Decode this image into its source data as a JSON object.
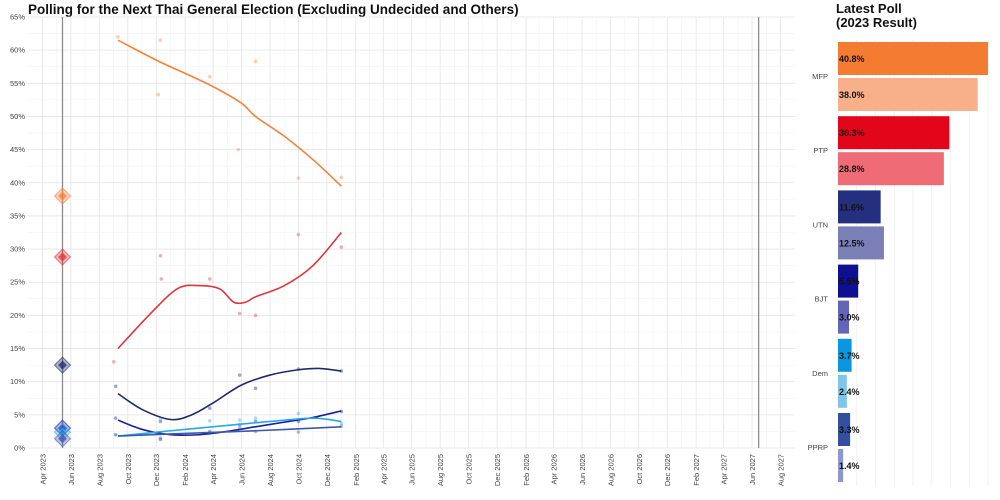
{
  "title": "Polling for the Next Thai General Election (Excluding Undecided and Others)",
  "side_title_line1": "Latest Poll",
  "side_title_line2": "(2023 Result)",
  "chart_data": [
    {
      "type": "line",
      "title": "Polling for the Next Thai General Election (Excluding Undecided and Others)",
      "xlabel": "",
      "ylabel": "",
      "ylim": [
        0,
        65
      ],
      "xlim": [
        "2023-03-01",
        "2027-09-01"
      ],
      "y_ticks": [
        "0%",
        "5%",
        "10%",
        "15%",
        "20%",
        "25%",
        "30%",
        "35%",
        "40%",
        "45%",
        "50%",
        "55%",
        "60%",
        "65%"
      ],
      "x_ticks": [
        {
          "date": "2023-04-01",
          "label": "Apr 2023"
        },
        {
          "date": "2023-06-01",
          "label": "Jun 2023"
        },
        {
          "date": "2023-08-01",
          "label": "Aug 2023"
        },
        {
          "date": "2023-10-01",
          "label": "Oct 2023"
        },
        {
          "date": "2023-12-01",
          "label": "Dec 2023"
        },
        {
          "date": "2024-02-01",
          "label": "Feb 2024"
        },
        {
          "date": "2024-04-01",
          "label": "Apr 2024"
        },
        {
          "date": "2024-06-01",
          "label": "Jun 2024"
        },
        {
          "date": "2024-08-01",
          "label": "Aug 2024"
        },
        {
          "date": "2024-10-01",
          "label": "Oct 2024"
        },
        {
          "date": "2024-12-01",
          "label": "Dec 2024"
        },
        {
          "date": "2025-02-01",
          "label": "Feb 2025"
        },
        {
          "date": "2025-04-01",
          "label": "Apr 2025"
        },
        {
          "date": "2025-06-01",
          "label": "Jun 2025"
        },
        {
          "date": "2025-08-01",
          "label": "Aug 2025"
        },
        {
          "date": "2025-10-01",
          "label": "Oct 2025"
        },
        {
          "date": "2025-12-01",
          "label": "Dec 2025"
        },
        {
          "date": "2026-02-01",
          "label": "Feb 2026"
        },
        {
          "date": "2026-04-01",
          "label": "Apr 2026"
        },
        {
          "date": "2026-06-01",
          "label": "Jun 2026"
        },
        {
          "date": "2026-08-01",
          "label": "Aug 2026"
        },
        {
          "date": "2026-10-01",
          "label": "Oct 2026"
        },
        {
          "date": "2026-12-01",
          "label": "Dec 2026"
        },
        {
          "date": "2027-02-01",
          "label": "Feb 2027"
        },
        {
          "date": "2027-04-01",
          "label": "Apr 2027"
        },
        {
          "date": "2027-06-01",
          "label": "Jun 2027"
        },
        {
          "date": "2027-08-01",
          "label": "Aug 2027"
        }
      ],
      "vertical_lines": [
        "2023-05-14",
        "2027-06-15"
      ],
      "grid": true,
      "series": [
        {
          "name": "MFP",
          "color": "#f5813b",
          "points": [
            [
              "2023-09-10",
              62
            ],
            [
              "2023-12-05",
              53.3
            ],
            [
              "2023-12-10",
              61.5
            ],
            [
              "2024-03-25",
              56
            ],
            [
              "2024-05-25",
              45
            ],
            [
              "2024-07-01",
              58.3
            ],
            [
              "2024-10-01",
              40.7
            ],
            [
              "2025-01-01",
              40.8
            ]
          ],
          "trend": [
            [
              "2023-09-10",
              61.5
            ],
            [
              "2023-12-01",
              58.5
            ],
            [
              "2024-02-01",
              56.5
            ],
            [
              "2024-04-01",
              54.5
            ],
            [
              "2024-06-01",
              52
            ],
            [
              "2024-07-01",
              50
            ],
            [
              "2024-09-01",
              47
            ],
            [
              "2024-11-01",
              43.5
            ],
            [
              "2025-01-01",
              39.5
            ]
          ],
          "election": 38.0
        },
        {
          "name": "PTP",
          "color": "#e0343b",
          "points": [
            [
              "2023-09-01",
              13
            ],
            [
              "2023-12-10",
              29
            ],
            [
              "2023-12-12",
              25.5
            ],
            [
              "2024-03-25",
              25.5
            ],
            [
              "2024-05-28",
              20.3
            ],
            [
              "2024-07-01",
              20
            ],
            [
              "2024-10-01",
              32.2
            ],
            [
              "2025-01-01",
              30.3
            ]
          ],
          "trend": [
            [
              "2023-09-10",
              15
            ],
            [
              "2023-11-15",
              20
            ],
            [
              "2024-01-15",
              24
            ],
            [
              "2024-03-01",
              24.5
            ],
            [
              "2024-04-15",
              24
            ],
            [
              "2024-05-15",
              22
            ],
            [
              "2024-06-10",
              22
            ],
            [
              "2024-07-01",
              22.8
            ],
            [
              "2024-09-01",
              24.5
            ],
            [
              "2024-11-01",
              27.5
            ],
            [
              "2025-01-01",
              32.5
            ]
          ],
          "election": 28.8
        },
        {
          "name": "UTN",
          "color": "#1f2a6b",
          "points": [
            [
              "2023-09-05",
              9.3
            ],
            [
              "2023-12-10",
              4
            ],
            [
              "2024-03-25",
              6
            ],
            [
              "2024-05-28",
              11
            ],
            [
              "2024-07-01",
              9
            ],
            [
              "2024-10-01",
              11.9
            ],
            [
              "2025-01-01",
              11.6
            ]
          ],
          "trend": [
            [
              "2023-09-10",
              8.2
            ],
            [
              "2023-11-01",
              5.8
            ],
            [
              "2024-01-01",
              4.3
            ],
            [
              "2024-02-15",
              5
            ],
            [
              "2024-04-01",
              6.8
            ],
            [
              "2024-06-01",
              9.5
            ],
            [
              "2024-08-01",
              11
            ],
            [
              "2024-10-01",
              11.8
            ],
            [
              "2024-11-15",
              12
            ],
            [
              "2025-01-01",
              11.6
            ]
          ],
          "election": 12.5
        },
        {
          "name": "BJT",
          "color": "#1a1f9e",
          "points": [
            [
              "2023-09-05",
              4.5
            ],
            [
              "2023-12-10",
              1.3
            ],
            [
              "2024-03-25",
              2.5
            ],
            [
              "2024-05-28",
              3.5
            ],
            [
              "2024-07-01",
              4
            ],
            [
              "2024-10-01",
              4
            ],
            [
              "2025-01-01",
              5.5
            ]
          ],
          "trend": [
            [
              "2023-09-10",
              4.2
            ],
            [
              "2023-11-01",
              2.8
            ],
            [
              "2024-01-01",
              2
            ],
            [
              "2024-03-01",
              2
            ],
            [
              "2024-05-01",
              2.5
            ],
            [
              "2024-07-01",
              3.2
            ],
            [
              "2024-09-01",
              3.9
            ],
            [
              "2024-11-01",
              4.6
            ],
            [
              "2025-01-01",
              5.6
            ]
          ],
          "election": 3.0
        },
        {
          "name": "Dem",
          "color": "#29a8e8",
          "points": [
            [
              "2023-09-05",
              2
            ],
            [
              "2023-12-10",
              4.3
            ],
            [
              "2024-03-25",
              4.1
            ],
            [
              "2024-05-28",
              4.2
            ],
            [
              "2024-07-01",
              4.5
            ],
            [
              "2024-10-01",
              5.2
            ],
            [
              "2025-01-01",
              3.7
            ]
          ],
          "trend": [
            [
              "2023-09-10",
              1.8
            ],
            [
              "2024-01-01",
              2.6
            ],
            [
              "2024-05-01",
              3.4
            ],
            [
              "2024-08-01",
              4
            ],
            [
              "2024-11-01",
              4.5
            ],
            [
              "2025-01-01",
              4
            ]
          ],
          "election": 2.4
        },
        {
          "name": "PPRP",
          "color": "#3d5aa8",
          "points": [
            [
              "2023-09-05",
              2
            ],
            [
              "2023-12-10",
              1.5
            ],
            [
              "2024-03-25",
              2.2
            ],
            [
              "2024-05-28",
              3
            ],
            [
              "2024-07-01",
              2.5
            ],
            [
              "2024-10-01",
              2.4
            ],
            [
              "2025-01-01",
              3.3
            ]
          ],
          "trend": [
            [
              "2023-09-10",
              1.8
            ],
            [
              "2024-02-01",
              2.2
            ],
            [
              "2024-07-01",
              2.6
            ],
            [
              "2025-01-01",
              3.2
            ]
          ],
          "election": 1.4
        }
      ]
    },
    {
      "type": "bar",
      "title": "Latest Poll\n(2023 Result)",
      "orientation": "horizontal",
      "categories": [
        "MFP",
        "PTP",
        "UTN",
        "BJT",
        "Dem",
        "PPRP"
      ],
      "xlim": [
        0,
        40.8
      ],
      "series": [
        {
          "name": "Latest Poll",
          "values": [
            40.8,
            30.3,
            11.6,
            5.5,
            3.7,
            3.3
          ],
          "labels": [
            "40.8%",
            "30.3%",
            "11.6%",
            "5.5%",
            "3.7%",
            "3.3%"
          ],
          "colors": [
            "#f47c32",
            "#e3061b",
            "#24307f",
            "#0f0f93",
            "#0b97e0",
            "#334f9e"
          ]
        },
        {
          "name": "2023 Result",
          "values": [
            38.0,
            28.8,
            12.5,
            3.0,
            2.4,
            1.4
          ],
          "labels": [
            "38.0%",
            "28.8%",
            "12.5%",
            "3.0%",
            "2.4%",
            "1.4%"
          ],
          "colors": [
            "#f7b08a",
            "#ef6b75",
            "#7a80b5",
            "#6464b8",
            "#7fc5ec",
            "#8c98c9"
          ]
        }
      ]
    }
  ]
}
